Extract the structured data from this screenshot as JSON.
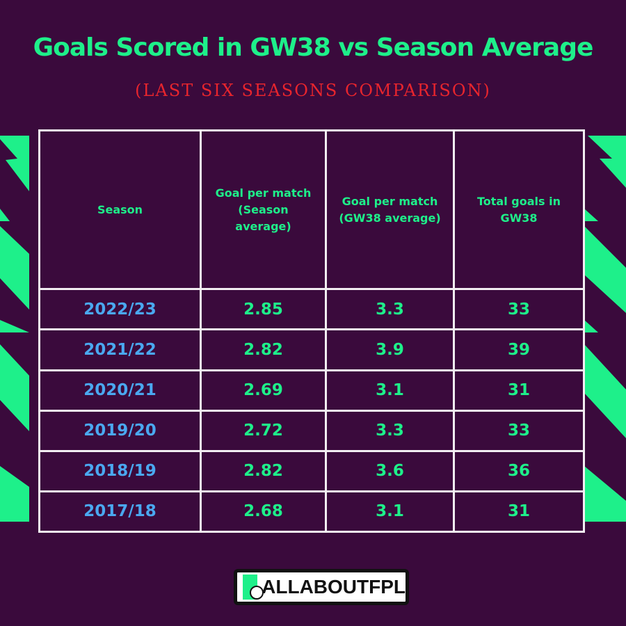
{
  "title": "Goals Scored in GW38 vs Season Average",
  "subtitle": "(LAST SIX SEASONS COMPARISON)",
  "table": {
    "headers": [
      "Season",
      "Goal per match (Season average)",
      "Goal per match (GW38 average)",
      "Total goals in GW38"
    ],
    "rows": [
      [
        "2022/23",
        "2.85",
        "3.3",
        "33"
      ],
      [
        "2021/22",
        "2.82",
        "3.9",
        "39"
      ],
      [
        "2020/21",
        "2.69",
        "3.1",
        "31"
      ],
      [
        "2019/20",
        "2.72",
        "3.3",
        "33"
      ],
      [
        "2018/19",
        "2.82",
        "3.6",
        "36"
      ],
      [
        "2017/18",
        "2.68",
        "3.1",
        "31"
      ]
    ]
  },
  "logo": "ALLABOUTFPL",
  "colors": {
    "background": "#3a0a3c",
    "accent": "#1ef08a",
    "season": "#4aa8f0",
    "subtitle": "#e8252d"
  }
}
